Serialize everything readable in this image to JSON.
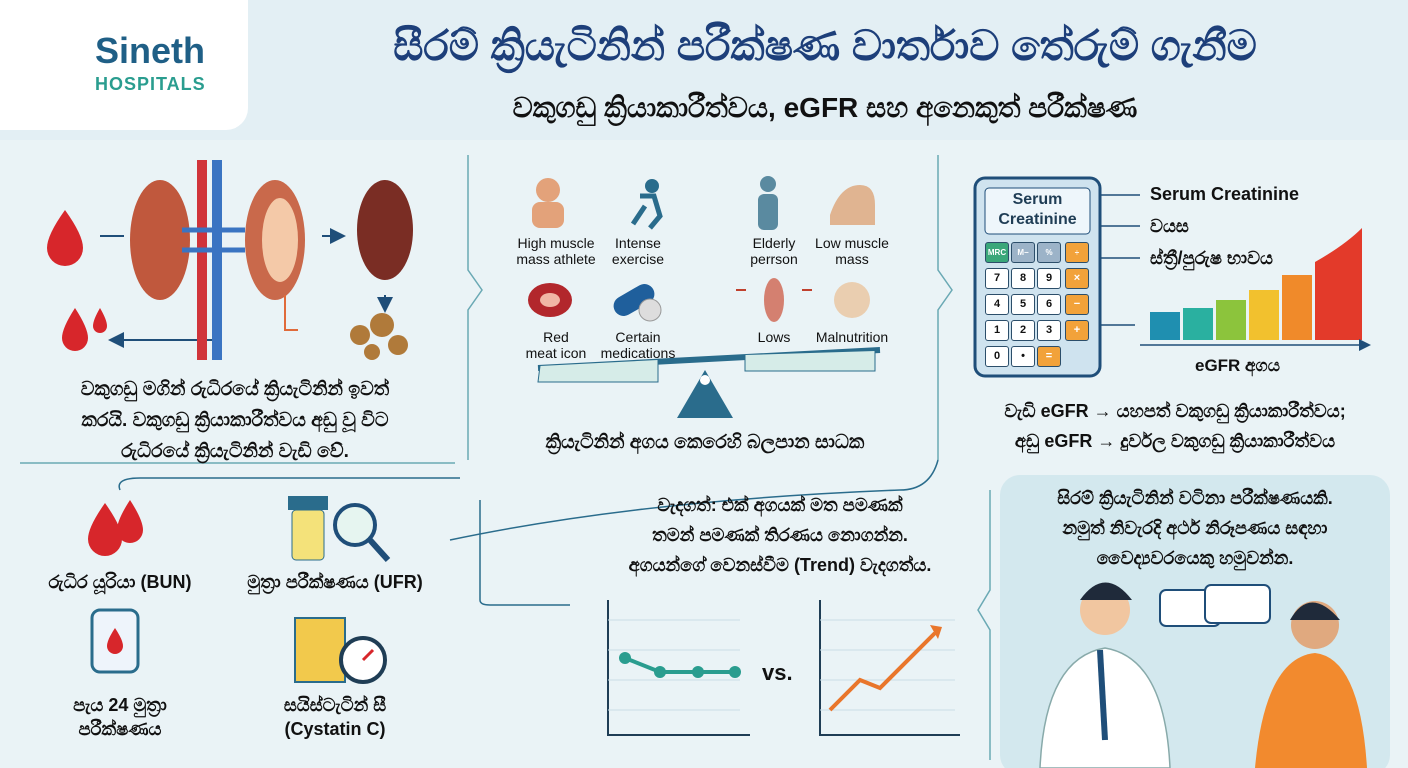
{
  "header": {
    "logo_name": "Sineth",
    "logo_sub": "HOSPITALS",
    "title": "සීරම් ක්‍රියැටිනින් පරීක්ෂණ වාර්තාව තේරුම් ගැනීම",
    "subtitle": "වකුගඩු ක්‍රියාකාරීත්වය, eGFR සහ අනෙකුත් පරීක්ෂණ"
  },
  "kidney_panel": {
    "lines": [
      "වකුගඩු මගින් රුධිරයේ ක්‍රියැටිනින් ඉවත්",
      "කරයි. වකුගඩු ක්‍රියාකාරීත්වය අඩු වූ විට",
      "රුධිරයේ ක්‍රියැටිනින් වැඩි වේ."
    ]
  },
  "factors_panel": {
    "high_items": [
      [
        "High muscle",
        "mass athlete"
      ],
      [
        "Intense",
        "exercise"
      ],
      [
        "Red",
        "meat icon"
      ],
      [
        "Certain",
        "medications"
      ]
    ],
    "low_items": [
      [
        "Elderly",
        "perrson"
      ],
      [
        "Low muscle",
        "mass"
      ],
      [
        "Lows"
      ],
      [
        "Malnutrition"
      ]
    ],
    "caption": "ක්‍රියැටිනින් අගය කෙරෙහි බලපාන සාධක"
  },
  "egfr_panel": {
    "calculator_title": [
      "Serum",
      "Creatinine"
    ],
    "keys": [
      "MRC",
      "M−",
      "%",
      "÷",
      "7",
      "8",
      "9",
      "×",
      "4",
      "5",
      "6",
      "−",
      "1",
      "2",
      "3",
      "+",
      "0",
      "•",
      "="
    ],
    "inputs": [
      "Serum Creatinine",
      "වයස",
      "ස්ත්‍රී/පුරුෂ භාවය"
    ],
    "axis_label": "eGFR අගය",
    "lines": [
      "වැඩි eGFR → යහපත් වකුගඩු ක්‍රියාකාරීත්වය;",
      "අඩු eGFR → දුර්වල වකුගඩු ක්‍රියාකාරීත්වය"
    ]
  },
  "tests_panel": {
    "tests": [
      [
        "රුධිර යූරියා (BUN)"
      ],
      [
        "මුත්‍රා පරීක්ෂණය (UFR)"
      ],
      [
        "පැය 24 මුත්‍රා",
        "පරීක්ෂණය"
      ],
      [
        "සයිස්ටැටින් සී",
        "(Cystatin C)"
      ]
    ]
  },
  "trend_panel": {
    "lines": [
      "වැදගත්: එක් අගයක් මත පමණක්",
      "තමන් පමණක් තිරණය නොගන්න.",
      "අගයන්ගේ වෙනස්වීම (Trend) වැදගත්ය."
    ],
    "versus": "vs."
  },
  "doctor_panel": {
    "lines": [
      "සිරම් ක්‍රියැටිනින් වටිනා පරීක්ෂණයකි.",
      "නමුත් නිවැරදි අර්ථ නිරූපණය සඳහා",
      "වෛද්‍යවරයෙකු හමුවන්න."
    ]
  }
}
